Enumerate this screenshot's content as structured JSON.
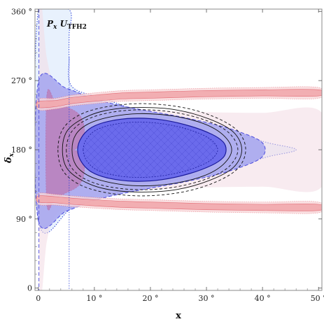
{
  "chart_data": {
    "type": "contour",
    "panel_label": {
      "main": "P",
      "sub1": "x",
      "mid": " U",
      "sub2": "TFH2"
    },
    "xlabel": "x",
    "ylabel": {
      "main": "δ",
      "sub": "x"
    },
    "xlim": [
      -0.6,
      50.6
    ],
    "ylim": [
      -3,
      363
    ],
    "x_ticks": [
      {
        "value": 0,
        "label": "0"
      },
      {
        "value": 10,
        "label": "10 °"
      },
      {
        "value": 20,
        "label": "20 °"
      },
      {
        "value": 30,
        "label": "30 °"
      },
      {
        "value": 40,
        "label": "40 °"
      },
      {
        "value": 50,
        "label": "50 °"
      }
    ],
    "y_ticks": [
      {
        "value": 0,
        "label": "0"
      },
      {
        "value": 90,
        "label": "90 °"
      },
      {
        "value": 180,
        "label": "180 °"
      },
      {
        "value": 270,
        "label": "270 °"
      },
      {
        "value": 360,
        "label": "360 °"
      }
    ],
    "blue_regions": [
      {
        "name": "3sigma",
        "points": [
          [
            0,
            88
          ],
          [
            6,
            104
          ],
          [
            12,
            120
          ],
          [
            18,
            130
          ],
          [
            24,
            140
          ],
          [
            30,
            150
          ],
          [
            36,
            160
          ],
          [
            41,
            171
          ],
          [
            46,
            180
          ],
          [
            41,
            189
          ],
          [
            36,
            200
          ],
          [
            30,
            210
          ],
          [
            24,
            220
          ],
          [
            18,
            230
          ],
          [
            12,
            246
          ],
          [
            6,
            262
          ],
          [
            5.5,
            300
          ],
          [
            5.5,
            330
          ],
          [
            5.5,
            362
          ],
          [
            0,
            362
          ]
        ],
        "fill": "#e8f1fd",
        "stroke": "#2a3fd8",
        "dash": "1.5,2"
      },
      {
        "name": "2sigma",
        "points": [
          [
            0,
            88
          ],
          [
            5,
            100
          ],
          [
            10,
            114
          ],
          [
            15,
            123
          ],
          [
            20,
            130
          ],
          [
            26,
            138
          ],
          [
            32,
            148
          ],
          [
            36,
            157
          ],
          [
            39.5,
            168
          ],
          [
            40.5,
            180
          ],
          [
            39.5,
            192
          ],
          [
            36,
            203
          ],
          [
            32,
            212
          ],
          [
            26,
            222
          ],
          [
            20,
            230
          ],
          [
            15,
            237
          ],
          [
            10,
            246
          ],
          [
            5,
            260
          ],
          [
            0,
            268
          ]
        ],
        "fill": "#a9a9f0",
        "stroke": "#3c3cdc",
        "dash": "5,3"
      },
      {
        "name": "1sigma",
        "points": [
          [
            7,
            180
          ],
          [
            7.7,
            164
          ],
          [
            9.5,
            151
          ],
          [
            12.5,
            143
          ],
          [
            17,
            139
          ],
          [
            22,
            141
          ],
          [
            27,
            149
          ],
          [
            31,
            160
          ],
          [
            33,
            170
          ],
          [
            33.5,
            180
          ],
          [
            33,
            190
          ],
          [
            31,
            200
          ],
          [
            27,
            211
          ],
          [
            22,
            219
          ],
          [
            17,
            221
          ],
          [
            12.5,
            217
          ],
          [
            9.5,
            209
          ],
          [
            7.7,
            196
          ]
        ],
        "fill": "#6b6bec",
        "stroke": "#1b1b9a",
        "dash": "none"
      }
    ],
    "red_bands": [
      {
        "name": "upper-band",
        "center": [
          [
            0,
            239
          ],
          [
            3,
            240
          ],
          [
            6,
            244
          ],
          [
            10,
            247
          ],
          [
            15,
            250
          ],
          [
            20,
            251
          ],
          [
            30,
            253
          ],
          [
            40,
            254
          ],
          [
            50,
            254
          ]
        ],
        "half_width": 4,
        "fill": "#f2a9ae",
        "stroke": "#e0606a"
      },
      {
        "name": "lower-band",
        "center": [
          [
            0,
            116
          ],
          [
            3,
            115
          ],
          [
            6,
            113
          ],
          [
            10,
            111
          ],
          [
            15,
            109
          ],
          [
            20,
            108
          ],
          [
            30,
            106
          ],
          [
            40,
            105
          ],
          [
            50,
            105
          ]
        ],
        "half_width": 4,
        "fill": "#f2a9ae",
        "stroke": "#e0606a"
      }
    ],
    "magenta_region": {
      "points": [
        [
          1.5,
          250
        ],
        [
          3,
          243
        ],
        [
          5,
          236
        ],
        [
          7,
          228
        ],
        [
          8,
          216
        ],
        [
          8.2,
          200
        ],
        [
          7.2,
          184
        ],
        [
          6.5,
          180
        ],
        [
          7.2,
          176
        ],
        [
          8.2,
          160
        ],
        [
          8,
          144
        ],
        [
          7,
          132
        ],
        [
          5,
          124
        ],
        [
          3,
          117
        ],
        [
          1.5,
          110
        ]
      ],
      "fill": "#c2669f",
      "opacity": 0.55
    },
    "contour_lines": [
      {
        "points": [
          [
            5,
            180
          ],
          [
            5.8,
            158
          ],
          [
            8.3,
            142
          ],
          [
            12.5,
            132
          ],
          [
            18,
            128
          ],
          [
            24,
            131
          ],
          [
            30,
            142
          ],
          [
            34,
            158
          ],
          [
            35.6,
            180
          ],
          [
            34,
            202
          ],
          [
            30,
            218
          ],
          [
            24,
            229
          ],
          [
            18,
            232
          ],
          [
            12.5,
            228
          ],
          [
            8.3,
            218
          ],
          [
            5.8,
            202
          ]
        ],
        "color": "#111111",
        "dash": "4,3"
      },
      {
        "points": [
          [
            6,
            180
          ],
          [
            6.7,
            160
          ],
          [
            9,
            146
          ],
          [
            13,
            137
          ],
          [
            18,
            133
          ],
          [
            24,
            136
          ],
          [
            29.5,
            146
          ],
          [
            33,
            161
          ],
          [
            34.5,
            180
          ],
          [
            33,
            199
          ],
          [
            29.5,
            214
          ],
          [
            24,
            224
          ],
          [
            18,
            227
          ],
          [
            13,
            223
          ],
          [
            9,
            214
          ],
          [
            6.7,
            200
          ]
        ],
        "color": "#111111",
        "dash": "none"
      },
      {
        "points": [
          [
            3.5,
            180
          ],
          [
            4.3,
            154
          ],
          [
            7,
            136
          ],
          [
            11.5,
            125
          ],
          [
            18,
            120
          ],
          [
            25,
            124
          ],
          [
            31,
            136
          ],
          [
            35.5,
            155
          ],
          [
            37,
            180
          ],
          [
            35.5,
            205
          ],
          [
            31,
            224
          ],
          [
            25,
            236
          ],
          [
            18,
            240
          ],
          [
            11.5,
            235
          ],
          [
            7,
            224
          ],
          [
            4.3,
            206
          ]
        ],
        "color": "#111111",
        "dash": "4,3"
      },
      {
        "points": [
          [
            4.3,
            180
          ],
          [
            5.1,
            156
          ],
          [
            7.8,
            140
          ],
          [
            12,
            129
          ],
          [
            18,
            125
          ],
          [
            24.5,
            128
          ],
          [
            30.5,
            140
          ],
          [
            34.8,
            157
          ],
          [
            36.3,
            180
          ],
          [
            34.8,
            203
          ],
          [
            30.5,
            220
          ],
          [
            24.5,
            232
          ],
          [
            18,
            235
          ],
          [
            12,
            231
          ],
          [
            7.8,
            220
          ],
          [
            5.1,
            204
          ]
        ],
        "color": "#111111",
        "dash": "none"
      }
    ],
    "hatch_region": {
      "points": [
        [
          8,
          180
        ],
        [
          8.6,
          166
        ],
        [
          10.4,
          154
        ],
        [
          13.5,
          147
        ],
        [
          17.5,
          144
        ],
        [
          22,
          146
        ],
        [
          26.5,
          153
        ],
        [
          30,
          163
        ],
        [
          31.5,
          172
        ],
        [
          32,
          180
        ],
        [
          31.5,
          188
        ],
        [
          30,
          197
        ],
        [
          26.5,
          207
        ],
        [
          22,
          214
        ],
        [
          17.5,
          216
        ],
        [
          13.5,
          213
        ],
        [
          10.4,
          206
        ],
        [
          8.6,
          194
        ]
      ],
      "color": "#5a5ad8"
    },
    "left_dashed_line": {
      "x": 0.1,
      "color": "#5a5ae0"
    }
  }
}
